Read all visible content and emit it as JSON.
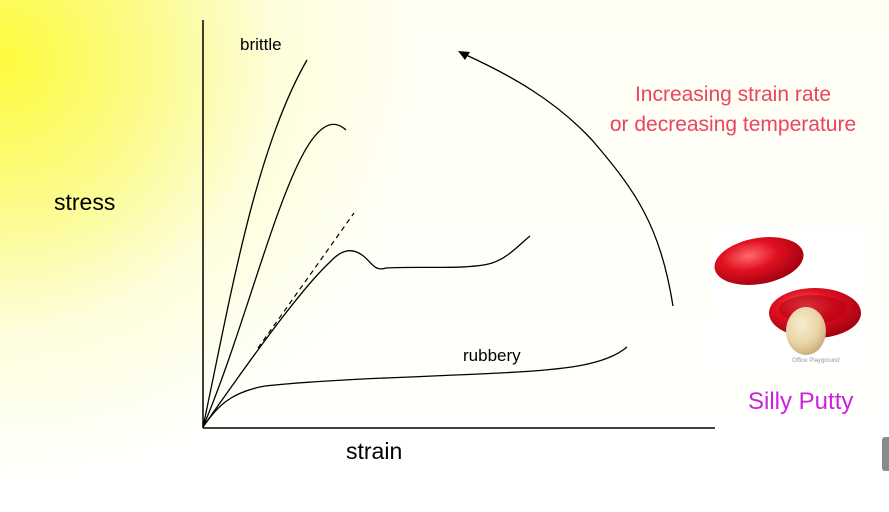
{
  "slide": {
    "y_axis_label": "stress",
    "x_axis_label": "strain",
    "curve_labels": {
      "brittle": "brittle",
      "rubbery": "rubbery"
    },
    "annotation_lines": [
      "Increasing strain rate",
      "or decreasing temperature"
    ],
    "caption": "Silly Putty",
    "photo_credit": "Office Playground"
  },
  "colors": {
    "annotation": "#e8455e",
    "caption": "#cc22dd",
    "putty_red": "#e01020",
    "putty_tan": "#e9d4a6"
  },
  "icons": {
    "arrow": "curved-arrow-icon",
    "scrollbar": "scroll-handle"
  }
}
